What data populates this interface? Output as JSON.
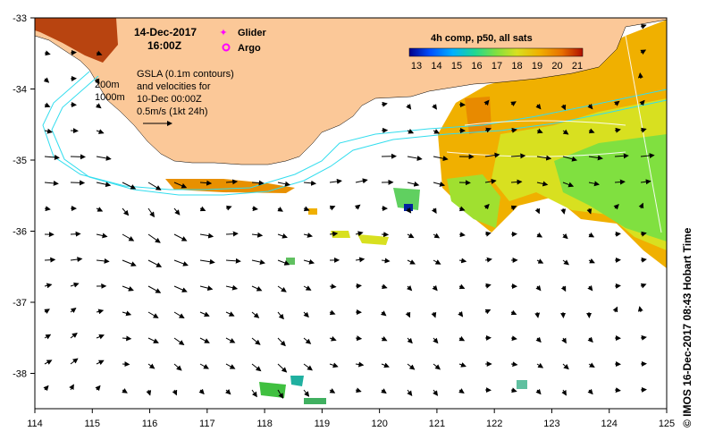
{
  "title": {
    "date": "14-Dec-2017",
    "time": "16:00Z"
  },
  "legend": {
    "glider": "Glider",
    "argo": "Argo",
    "glider_color": "#ff00ff",
    "argo_color": "#ff00ff"
  },
  "annotations": {
    "gsla_line1": "GSLA (0.1m contours)",
    "gsla_line2": "and velocities for",
    "gsla_line3": "10-Dec 00:00Z",
    "gsla_line4": "0.5m/s (1kt 24h)",
    "depth_200": "200m",
    "depth_1000": "1000m"
  },
  "colorbar": {
    "title": "4h comp, p50, all sats",
    "ticks": [
      "13",
      "14",
      "15",
      "16",
      "17",
      "18",
      "19",
      "20",
      "21"
    ]
  },
  "axes": {
    "x_ticks": [
      "114",
      "115",
      "116",
      "117",
      "118",
      "119",
      "120",
      "121",
      "122",
      "123",
      "124",
      "125"
    ],
    "y_ticks": [
      "-33",
      "-34",
      "-35",
      "-36",
      "-37",
      "-38"
    ]
  },
  "credit": "© IMOS 16-Dec-2017 08:43 Hobart Time",
  "colors": {
    "land": "#fbc898",
    "bathymetry": "#33ddee",
    "colormap": [
      "#00008b",
      "#0050ff",
      "#00b0ff",
      "#20d890",
      "#80e040",
      "#d8e020",
      "#f0b000",
      "#e87000",
      "#b01000"
    ]
  }
}
